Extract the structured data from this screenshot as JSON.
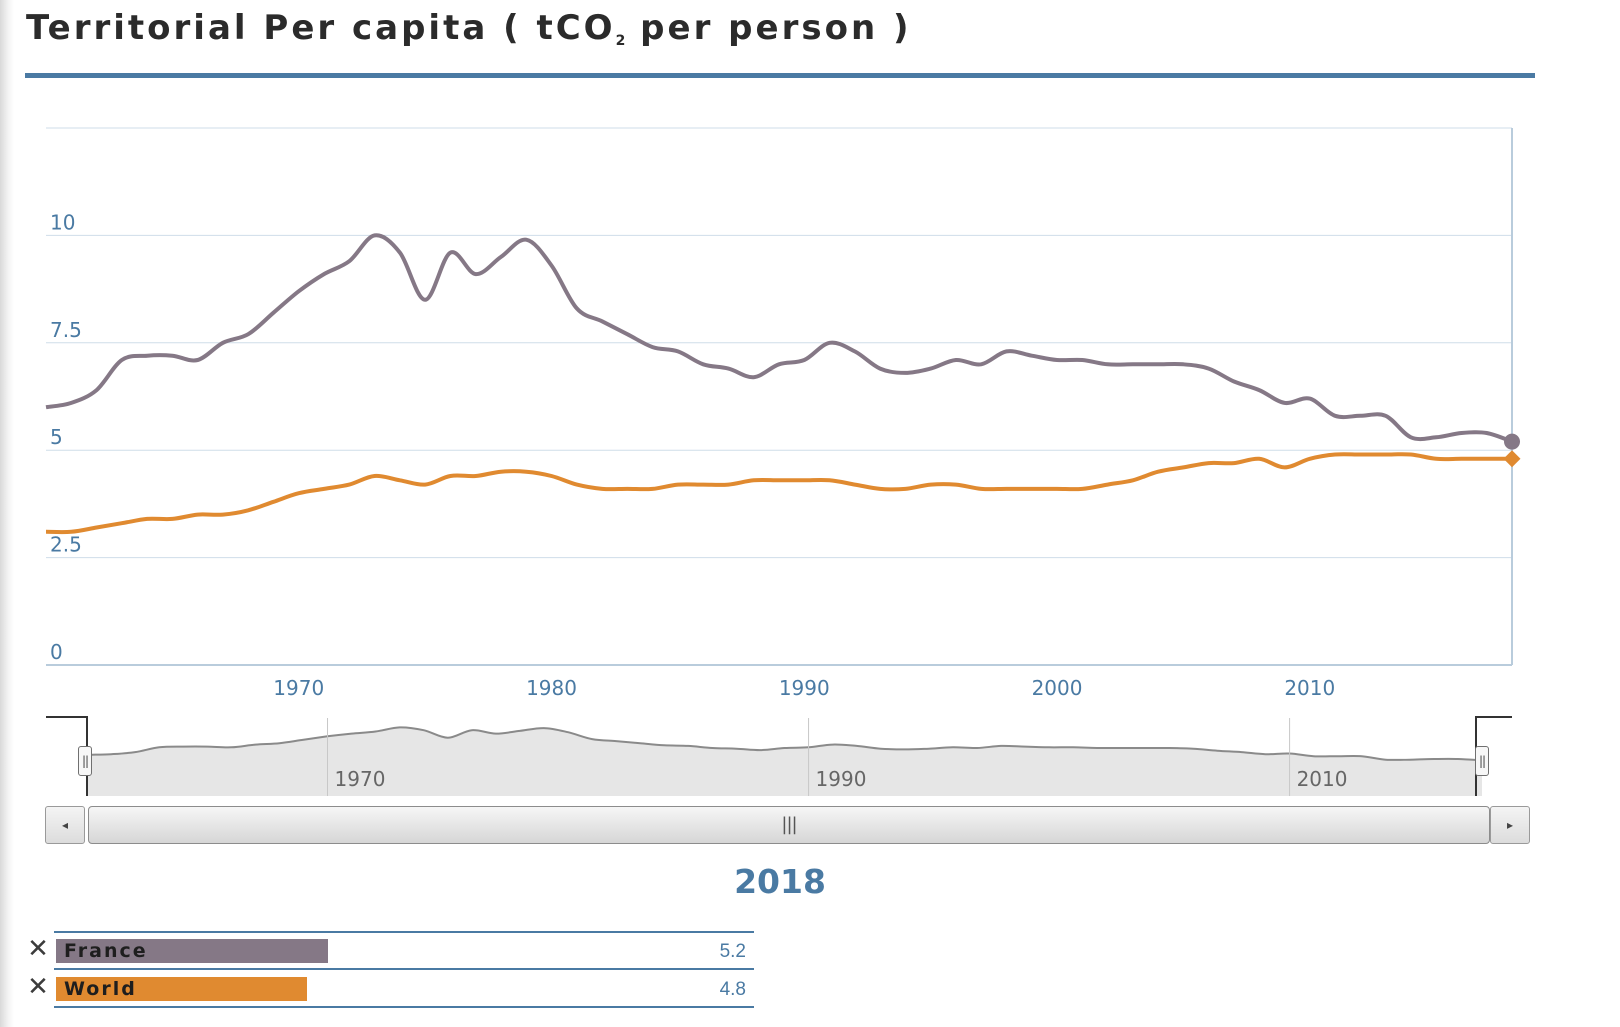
{
  "title": {
    "main": "Territorial Per capita ( tCO",
    "sub": "2",
    "end": " per person )"
  },
  "accent_color": "#4a7aa3",
  "chart_data": {
    "type": "line",
    "x": [
      1960,
      1961,
      1962,
      1963,
      1964,
      1965,
      1966,
      1967,
      1968,
      1969,
      1970,
      1971,
      1972,
      1973,
      1974,
      1975,
      1976,
      1977,
      1978,
      1979,
      1980,
      1981,
      1982,
      1983,
      1984,
      1985,
      1986,
      1987,
      1988,
      1989,
      1990,
      1991,
      1992,
      1993,
      1994,
      1995,
      1996,
      1997,
      1998,
      1999,
      2000,
      2001,
      2002,
      2003,
      2004,
      2005,
      2006,
      2007,
      2008,
      2009,
      2010,
      2011,
      2012,
      2013,
      2014,
      2015,
      2016,
      2017,
      2018
    ],
    "series": [
      {
        "name": "France",
        "color": "#857886",
        "values": [
          6.0,
          6.1,
          6.4,
          7.1,
          7.2,
          7.2,
          7.1,
          7.5,
          7.7,
          8.2,
          8.7,
          9.1,
          9.4,
          10.0,
          9.6,
          8.5,
          9.6,
          9.1,
          9.5,
          9.9,
          9.3,
          8.3,
          8.0,
          7.7,
          7.4,
          7.3,
          7.0,
          6.9,
          6.7,
          7.0,
          7.1,
          7.5,
          7.3,
          6.9,
          6.8,
          6.9,
          7.1,
          7.0,
          7.3,
          7.2,
          7.1,
          7.1,
          7.0,
          7.0,
          7.0,
          7.0,
          6.9,
          6.6,
          6.4,
          6.1,
          6.2,
          5.8,
          5.8,
          5.8,
          5.3,
          5.3,
          5.4,
          5.4,
          5.2
        ]
      },
      {
        "name": "World",
        "color": "#e08a30",
        "values": [
          3.1,
          3.1,
          3.2,
          3.3,
          3.4,
          3.4,
          3.5,
          3.5,
          3.6,
          3.8,
          4.0,
          4.1,
          4.2,
          4.4,
          4.3,
          4.2,
          4.4,
          4.4,
          4.5,
          4.5,
          4.4,
          4.2,
          4.1,
          4.1,
          4.1,
          4.2,
          4.2,
          4.2,
          4.3,
          4.3,
          4.3,
          4.3,
          4.2,
          4.1,
          4.1,
          4.2,
          4.2,
          4.1,
          4.1,
          4.1,
          4.1,
          4.1,
          4.2,
          4.3,
          4.5,
          4.6,
          4.7,
          4.7,
          4.8,
          4.6,
          4.8,
          4.9,
          4.9,
          4.9,
          4.9,
          4.8,
          4.8,
          4.8,
          4.8
        ]
      }
    ],
    "y_ticks": [
      "0",
      "2.5",
      "5",
      "7.5",
      "10"
    ],
    "x_ticks": [
      "1970",
      "1980",
      "1990",
      "2000",
      "2010"
    ],
    "navigator_ticks": [
      "1970",
      "1990",
      "2010"
    ],
    "ylim": [
      0,
      12.5
    ],
    "xlim": [
      1960,
      2018
    ],
    "grid": true
  },
  "selected_year": "2018",
  "legend": [
    {
      "name": "France",
      "value": "5.2",
      "remove": "✕",
      "color": "#857886"
    },
    {
      "name": "World",
      "value": "4.8",
      "remove": "✕",
      "color": "#e08a30"
    }
  ],
  "scrollbar": {
    "left_arrow": "◂",
    "right_arrow": "▸",
    "thumb_grip": "|||",
    "handle_grip": "||"
  }
}
